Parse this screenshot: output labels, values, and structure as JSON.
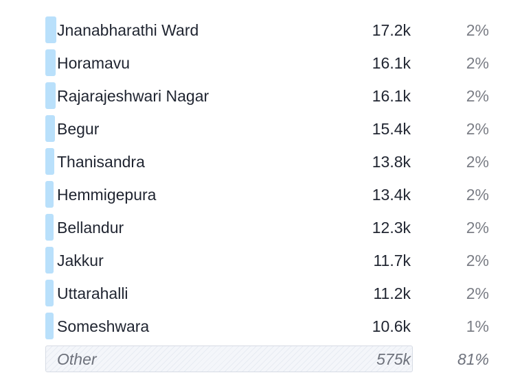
{
  "rows": [
    {
      "label": "Jnanabharathi Ward",
      "value": "17.2k",
      "percent": "2%",
      "share": 0.0243
    },
    {
      "label": "Horamavu",
      "value": "16.1k",
      "percent": "2%",
      "share": 0.0227
    },
    {
      "label": "Rajarajeshwari Nagar",
      "value": "16.1k",
      "percent": "2%",
      "share": 0.0227
    },
    {
      "label": "Begur",
      "value": "15.4k",
      "percent": "2%",
      "share": 0.0217
    },
    {
      "label": "Thanisandra",
      "value": "13.8k",
      "percent": "2%",
      "share": 0.0195
    },
    {
      "label": "Hemmigepura",
      "value": "13.4k",
      "percent": "2%",
      "share": 0.0189
    },
    {
      "label": "Bellandur",
      "value": "12.3k",
      "percent": "2%",
      "share": 0.0174
    },
    {
      "label": "Jakkur",
      "value": "11.7k",
      "percent": "2%",
      "share": 0.0165
    },
    {
      "label": "Uttarahalli",
      "value": "11.2k",
      "percent": "2%",
      "share": 0.0158
    },
    {
      "label": "Someshwara",
      "value": "10.6k",
      "percent": "1%",
      "share": 0.015
    }
  ],
  "other": {
    "label": "Other",
    "value": "575k",
    "percent": "81%",
    "share": 0.81
  },
  "colors": {
    "bar": "#b9e0fb",
    "other_bar": "#f4f6fa",
    "text": "#1f2430",
    "muted": "#7a7d85"
  }
}
